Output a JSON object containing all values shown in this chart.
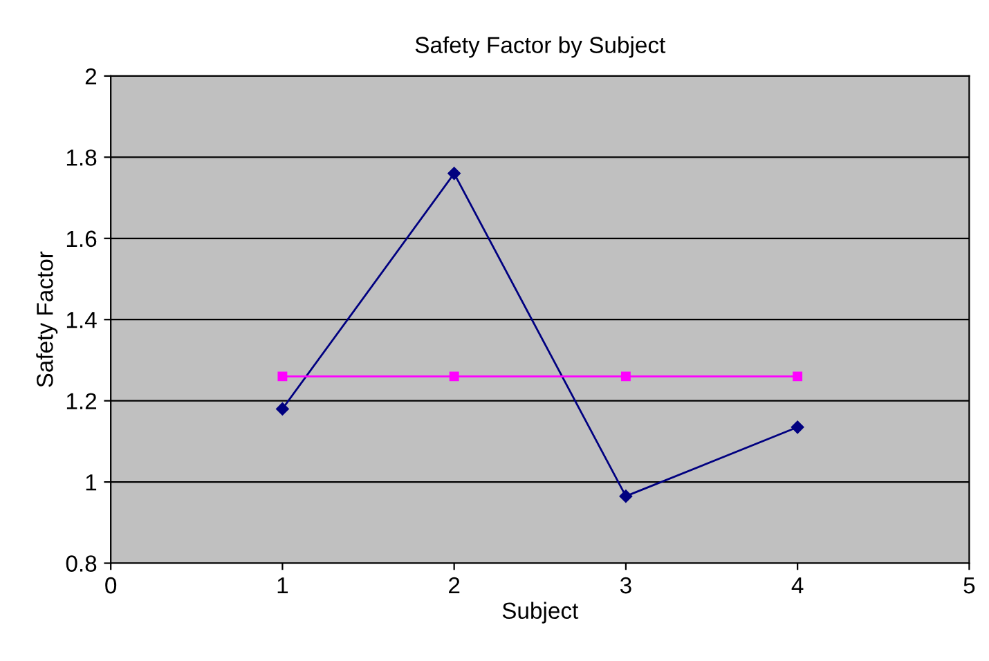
{
  "chart_data": {
    "type": "line",
    "title": "Safety Factor by Subject",
    "xlabel": "Subject",
    "ylabel": "Safety Factor",
    "x": [
      1,
      2,
      3,
      4
    ],
    "series": [
      {
        "color": "#000080",
        "values": [
          1.18,
          1.76,
          0.965,
          1.135
        ],
        "marker": "diamond"
      },
      {
        "color": "#ff00ff",
        "values": [
          1.26,
          1.26,
          1.26,
          1.26
        ],
        "marker": "square"
      }
    ],
    "xlim": [
      0,
      5
    ],
    "xticks": [
      0,
      1,
      2,
      3,
      4,
      5
    ],
    "ylim": [
      0.8,
      2
    ],
    "yticks": [
      0.8,
      1,
      1.2,
      1.4,
      1.6,
      1.8,
      2
    ],
    "grid": "y",
    "legend": false,
    "line_style": "solid"
  }
}
